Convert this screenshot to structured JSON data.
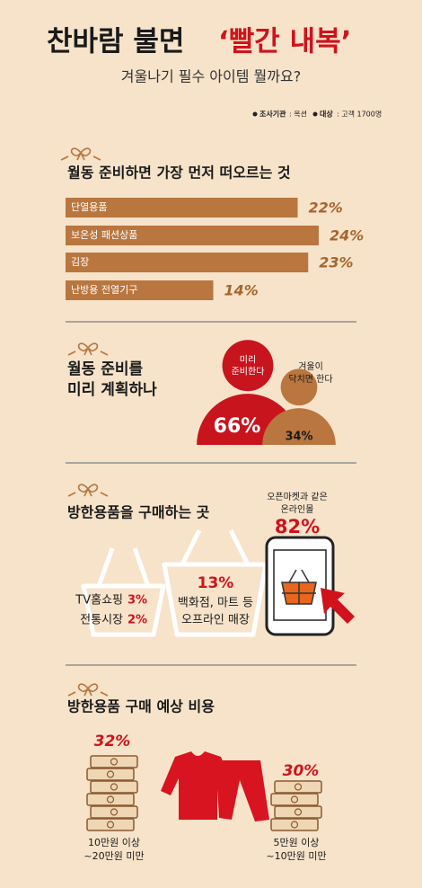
{
  "header": {
    "title": "찬바람 불면",
    "title_highlight": "‘빨간 내복’",
    "subtitle": "겨울나기 필수 아이템 뭘까요?",
    "source": {
      "agency_label": "조사기관",
      "agency": ": 옥션",
      "target_label": "대상",
      "target": ": 고객 1700명"
    }
  },
  "chart_data": [
    {
      "type": "bar",
      "title": "월동 준비하면 가장 먼저 떠오르는 것",
      "categories": [
        "단열용품",
        "보온성 패션상품",
        "김장",
        "난방용 전열기구"
      ],
      "values": [
        22,
        24,
        23,
        14
      ],
      "value_labels": [
        "22%",
        "24%",
        "23%",
        "14%"
      ],
      "color": "#b9763f"
    },
    {
      "type": "people",
      "title": [
        "월동 준비를",
        "미리 계획하나"
      ],
      "categories": [
        [
          "미리",
          "준비한다"
        ],
        [
          "겨울이",
          "닥치면 한다"
        ]
      ],
      "values": [
        66,
        34
      ],
      "value_labels": [
        "66%",
        "34%"
      ],
      "colors": [
        "#c8141d",
        "#b9763f"
      ]
    },
    {
      "type": "shops",
      "title": "방한용품을 구매하는 곳",
      "categories": [
        [
          "TV홈쇼핑"
        ],
        [
          "전통시장"
        ],
        [
          "백화점, 마트 등",
          "오프라인 매장"
        ],
        [
          "오픈마켓과 같은",
          "온라인몰"
        ]
      ],
      "values": [
        3,
        2,
        13,
        82
      ],
      "value_labels": [
        "3%",
        "2%",
        "13%",
        "82%"
      ]
    },
    {
      "type": "money",
      "title": "방한용품 구매 예상 비용",
      "categories": [
        [
          "10만원 이상",
          "~20만원 미만"
        ],
        [
          "5만원 이상",
          "~10만원 미만"
        ]
      ],
      "values": [
        32,
        30
      ],
      "value_labels": [
        "32%",
        "30%"
      ]
    }
  ]
}
